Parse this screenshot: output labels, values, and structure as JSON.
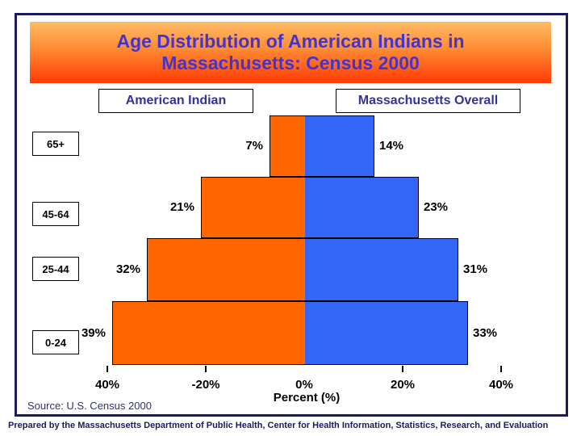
{
  "title": {
    "line1": "Age Distribution of American Indians in",
    "line2": "Massachusetts: Census 2000"
  },
  "legend": {
    "left": "American Indian",
    "right": "Massachusetts Overall"
  },
  "chart_data": {
    "type": "bar",
    "variant": "population-pyramid",
    "title": "Age Distribution of American Indians in Massachusetts: Census 2000",
    "categories": [
      "65+",
      "45-64",
      "25-44",
      "0-24"
    ],
    "series": [
      {
        "name": "American Indian",
        "side": "left",
        "color": "#FF6600",
        "values": [
          7,
          21,
          32,
          39
        ]
      },
      {
        "name": "Massachusetts Overall",
        "side": "right",
        "color": "#3366F5",
        "values": [
          14,
          23,
          31,
          33
        ]
      }
    ],
    "rows": [
      {
        "age": "65+",
        "left": 7,
        "right": 14,
        "left_label": "7%",
        "right_label": "14%"
      },
      {
        "age": "45-64",
        "left": 21,
        "right": 23,
        "left_label": "21%",
        "right_label": "23%"
      },
      {
        "age": "25-44",
        "left": 32,
        "right": 31,
        "left_label": "32%",
        "right_label": "31%"
      },
      {
        "age": "0-24",
        "left": 39,
        "right": 33,
        "left_label": "39%",
        "right_label": "33%"
      }
    ],
    "xlabel": "Percent (%)",
    "x_tick_labels": [
      "40%",
      "-20%",
      "0%",
      "20%",
      "40%"
    ],
    "x_tick_values": [
      -40,
      -20,
      0,
      20,
      40
    ],
    "xlim": [
      -40,
      40
    ],
    "legend_position": "top",
    "grid": false
  },
  "footer": {
    "source": "Source: U.S. Census 2000",
    "prepared": "Prepared by the Massachusetts Department of Public Health, Center for Health Information, Statistics, Research, and Evaluation"
  },
  "colors": {
    "american_indian_bar": "#FF6600",
    "massachusetts_overall_bar": "#3366F5",
    "banner_gradient_top": "#FFBC66",
    "banner_gradient_bottom": "#FF3B05",
    "title_text": "#4433CC",
    "legend_text": "#333399",
    "frame_border": "#1B1B5E",
    "label_text": "#000000"
  }
}
